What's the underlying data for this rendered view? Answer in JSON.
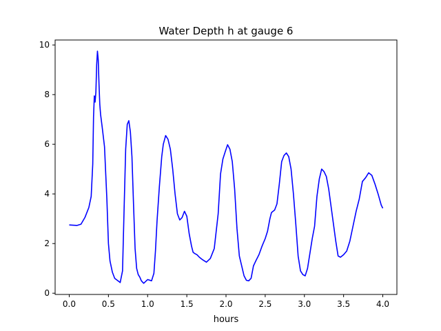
{
  "chart_data": {
    "type": "line",
    "title": "Water Depth h at gauge 6",
    "xlabel": "hours",
    "ylabel": "",
    "xlim": [
      -0.18,
      4.18
    ],
    "ylim": [
      -0.05,
      10.2
    ],
    "xticks": [
      0.0,
      0.5,
      1.0,
      1.5,
      2.0,
      2.5,
      3.0,
      3.5,
      4.0
    ],
    "xtick_labels": [
      "0.0",
      "0.5",
      "1.0",
      "1.5",
      "2.0",
      "2.5",
      "3.0",
      "3.5",
      "4.0"
    ],
    "yticks": [
      0,
      2,
      4,
      6,
      8,
      10
    ],
    "ytick_labels": [
      "0",
      "2",
      "4",
      "6",
      "8",
      "10"
    ],
    "grid": false,
    "series": [
      {
        "color": "#0000ff",
        "x": [
          0.0,
          0.05,
          0.1,
          0.15,
          0.2,
          0.25,
          0.28,
          0.3,
          0.31,
          0.32,
          0.33,
          0.34,
          0.35,
          0.36,
          0.37,
          0.38,
          0.39,
          0.4,
          0.42,
          0.45,
          0.48,
          0.5,
          0.52,
          0.55,
          0.58,
          0.6,
          0.63,
          0.65,
          0.68,
          0.7,
          0.72,
          0.74,
          0.76,
          0.78,
          0.8,
          0.82,
          0.84,
          0.86,
          0.88,
          0.9,
          0.92,
          0.95,
          1.0,
          1.05,
          1.08,
          1.1,
          1.12,
          1.15,
          1.18,
          1.2,
          1.23,
          1.26,
          1.29,
          1.32,
          1.35,
          1.38,
          1.41,
          1.44,
          1.47,
          1.5,
          1.53,
          1.56,
          1.58,
          1.6,
          1.63,
          1.66,
          1.7,
          1.75,
          1.8,
          1.85,
          1.9,
          1.93,
          1.96,
          1.99,
          2.02,
          2.05,
          2.08,
          2.11,
          2.14,
          2.17,
          2.2,
          2.23,
          2.26,
          2.29,
          2.32,
          2.35,
          2.38,
          2.42,
          2.46,
          2.5,
          2.53,
          2.56,
          2.58,
          2.6,
          2.62,
          2.65,
          2.68,
          2.71,
          2.74,
          2.77,
          2.8,
          2.83,
          2.86,
          2.89,
          2.92,
          2.95,
          2.98,
          3.01,
          3.04,
          3.07,
          3.1,
          3.13,
          3.16,
          3.19,
          3.22,
          3.25,
          3.28,
          3.31,
          3.34,
          3.37,
          3.4,
          3.43,
          3.46,
          3.5,
          3.54,
          3.58,
          3.62,
          3.66,
          3.7,
          3.74,
          3.78,
          3.82,
          3.86,
          3.9,
          3.94,
          3.98,
          4.0
        ],
        "y": [
          2.75,
          2.74,
          2.73,
          2.78,
          3.05,
          3.45,
          3.9,
          5.2,
          7.1,
          7.95,
          7.7,
          8.1,
          9.2,
          9.75,
          9.4,
          8.4,
          7.6,
          7.2,
          6.7,
          5.9,
          3.8,
          2.0,
          1.3,
          0.85,
          0.6,
          0.55,
          0.48,
          0.43,
          0.9,
          3.4,
          5.8,
          6.8,
          6.95,
          6.5,
          5.5,
          3.6,
          1.8,
          1.0,
          0.75,
          0.65,
          0.5,
          0.4,
          0.55,
          0.5,
          0.8,
          1.7,
          2.9,
          4.3,
          5.5,
          6.0,
          6.35,
          6.2,
          5.8,
          5.0,
          4.0,
          3.2,
          2.95,
          3.05,
          3.3,
          3.1,
          2.4,
          1.9,
          1.65,
          1.6,
          1.55,
          1.45,
          1.35,
          1.25,
          1.4,
          1.8,
          3.2,
          4.8,
          5.4,
          5.7,
          5.98,
          5.8,
          5.3,
          4.2,
          2.6,
          1.5,
          1.1,
          0.7,
          0.52,
          0.5,
          0.6,
          1.1,
          1.3,
          1.55,
          1.9,
          2.2,
          2.5,
          3.0,
          3.25,
          3.3,
          3.35,
          3.6,
          4.4,
          5.3,
          5.55,
          5.65,
          5.5,
          5.0,
          4.0,
          2.8,
          1.5,
          0.9,
          0.75,
          0.7,
          1.0,
          1.6,
          2.2,
          2.7,
          3.9,
          4.6,
          5.0,
          4.9,
          4.7,
          4.2,
          3.5,
          2.8,
          2.1,
          1.5,
          1.45,
          1.55,
          1.7,
          2.1,
          2.7,
          3.3,
          3.8,
          4.5,
          4.65,
          4.85,
          4.75,
          4.4,
          4.0,
          3.55,
          3.42
        ]
      }
    ]
  }
}
